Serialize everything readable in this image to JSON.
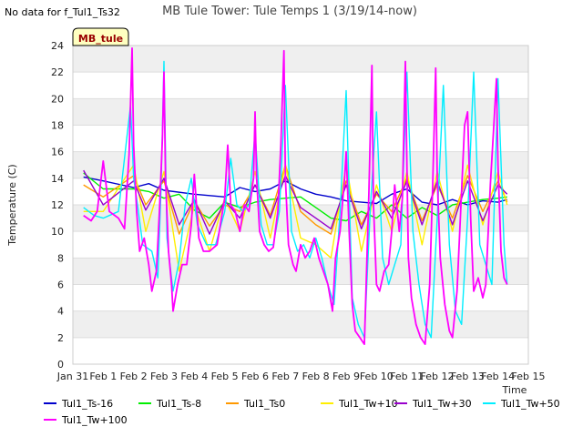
{
  "note": "No data for f_Tul1_Ts32",
  "badge": "MB_tule",
  "chart_data": {
    "type": "line",
    "title": "MB Tule Tower: Tule Temps 1 (3/19/14-now)",
    "xlabel": "Time",
    "ylabel": "Temperature (C)",
    "ylim": [
      0,
      24
    ],
    "xlim": [
      0,
      15
    ],
    "x_tick_values": [
      0,
      1,
      2,
      3,
      4,
      5,
      6,
      7,
      8,
      9,
      10,
      11,
      12,
      13,
      14,
      15
    ],
    "x_tick_labels": [
      "Jan 31",
      "Feb 1",
      "Feb 2",
      "Feb 3",
      "Feb 4",
      "Feb 5",
      "Feb 6",
      "Feb 7",
      "Feb 8",
      "Feb 9",
      "Feb 10",
      "Feb 11",
      "Feb 12",
      "Feb 13",
      "Feb 14",
      "Feb 15"
    ],
    "y_ticks": [
      0,
      2,
      4,
      6,
      8,
      10,
      12,
      14,
      16,
      18,
      20,
      22,
      24
    ],
    "grid": "alternating horizontal bands",
    "legend_position": "bottom",
    "series": [
      {
        "name": "Tul1_Ts-16",
        "color": "#0000cc",
        "x": [
          0.35,
          1,
          2,
          2.5,
          3,
          4,
          5,
          5.5,
          6,
          6.5,
          7,
          7.5,
          8,
          8.5,
          9,
          9.5,
          10,
          10.5,
          11,
          11.5,
          12,
          12.5,
          13,
          13.5,
          14,
          14.3
        ],
        "y": [
          14.1,
          13.8,
          13.3,
          13.6,
          13.1,
          12.8,
          12.6,
          13.3,
          13.0,
          13.2,
          13.8,
          13.2,
          12.8,
          12.6,
          12.3,
          12.2,
          12.1,
          12.8,
          13.2,
          12.2,
          12.0,
          12.4,
          12.0,
          12.3,
          12.2,
          12.4
        ]
      },
      {
        "name": "Tul1_Ts-8",
        "color": "#00ee00",
        "x": [
          0.35,
          1,
          2,
          2.5,
          3,
          3.5,
          4,
          4.5,
          5,
          5.5,
          6,
          6.5,
          7,
          7.5,
          8,
          8.5,
          9,
          9.5,
          10,
          10.5,
          11,
          11.5,
          12,
          12.5,
          13,
          13.5,
          14,
          14.3
        ],
        "y": [
          14.4,
          13.2,
          13.2,
          13.0,
          12.5,
          12.8,
          11.6,
          11.0,
          12.2,
          11.8,
          12.2,
          12.4,
          12.5,
          12.6,
          11.8,
          11.0,
          10.8,
          11.5,
          11.0,
          12.0,
          11.0,
          11.8,
          11.2,
          12.0,
          12.2,
          12.4,
          12.5,
          12.6
        ]
      },
      {
        "name": "Tul1_Ts0",
        "color": "#ff9900",
        "x": [
          0.35,
          1,
          2,
          2.4,
          3,
          3.5,
          4,
          4.5,
          5,
          5.5,
          6,
          6.5,
          7,
          7.5,
          8,
          8.5,
          9,
          9.5,
          10,
          10.5,
          11,
          11.5,
          12,
          12.5,
          13,
          13.5,
          14,
          14.3
        ],
        "y": [
          13.5,
          12.6,
          14.2,
          12.0,
          13.8,
          9.8,
          12.3,
          10.4,
          12.0,
          11.5,
          13.5,
          11.2,
          15.0,
          11.5,
          10.5,
          9.8,
          13.8,
          10.5,
          12.8,
          11.5,
          14.0,
          10.8,
          13.5,
          11.0,
          14.2,
          11.5,
          13.8,
          12.2
        ]
      },
      {
        "name": "Tul1_Tw+10",
        "color": "#ffee00",
        "x": [
          0.35,
          1,
          2,
          2.4,
          3,
          3.5,
          4,
          4.5,
          5,
          5.5,
          6,
          6.5,
          7,
          7.5,
          8,
          8.5,
          9,
          9.5,
          10,
          10.5,
          11,
          11.5,
          12,
          12.5,
          13,
          13.5,
          14,
          14.3
        ],
        "y": [
          11.5,
          11.5,
          15.0,
          10.0,
          14.5,
          7.0,
          12.0,
          8.5,
          12.5,
          10.0,
          14.5,
          9.5,
          15.0,
          9.5,
          9.0,
          8.0,
          15.0,
          8.5,
          13.5,
          10.0,
          14.5,
          9.0,
          14.5,
          10.0,
          15.0,
          10.5,
          14.5,
          12.0
        ]
      },
      {
        "name": "Tul1_Tw+30",
        "color": "#9900cc",
        "x": [
          0.35,
          1,
          2,
          2.4,
          3,
          3.5,
          4,
          4.5,
          5,
          5.5,
          6,
          6.5,
          7,
          7.5,
          8,
          8.5,
          9,
          9.5,
          10,
          10.5,
          11,
          11.5,
          12,
          12.5,
          13,
          13.5,
          14,
          14.3
        ],
        "y": [
          14.6,
          12.0,
          13.8,
          11.6,
          14.0,
          10.5,
          12.4,
          9.8,
          12.3,
          11.0,
          13.5,
          11.0,
          14.2,
          11.8,
          11.0,
          10.2,
          13.5,
          10.2,
          13.0,
          11.0,
          13.8,
          10.5,
          13.8,
          10.5,
          13.8,
          10.8,
          13.5,
          12.8
        ]
      },
      {
        "name": "Tul1_Tw+50",
        "color": "#00eeff",
        "x": [
          0.35,
          0.7,
          1,
          1.5,
          1.9,
          2.0,
          2.1,
          2.3,
          2.6,
          2.8,
          2.9,
          3.0,
          3.1,
          3.3,
          3.5,
          3.7,
          3.9,
          4.1,
          4.4,
          4.7,
          5.0,
          5.2,
          5.4,
          5.6,
          5.8,
          6.0,
          6.2,
          6.4,
          6.6,
          6.8,
          7.0,
          7.2,
          7.4,
          7.6,
          7.8,
          8.0,
          8.2,
          8.4,
          8.6,
          8.8,
          9.0,
          9.2,
          9.4,
          9.6,
          9.8,
          10.0,
          10.2,
          10.4,
          10.6,
          10.8,
          11.0,
          11.2,
          11.4,
          11.6,
          11.8,
          12.0,
          12.2,
          12.4,
          12.6,
          12.8,
          13.0,
          13.2,
          13.4,
          13.6,
          13.8,
          14.0,
          14.2,
          14.3
        ],
        "y": [
          11.8,
          11.2,
          11.0,
          11.5,
          19.5,
          14.0,
          12.5,
          9.0,
          8.5,
          6.5,
          13.0,
          22.8,
          9.5,
          5.5,
          7.8,
          12.0,
          14.0,
          10.5,
          9.0,
          9.0,
          11.5,
          15.5,
          12.0,
          11.5,
          12.0,
          17.5,
          10.5,
          9.0,
          9.0,
          11.5,
          21.0,
          10.0,
          8.5,
          9.0,
          8.0,
          9.5,
          8.0,
          6.0,
          4.5,
          11.5,
          20.6,
          5.0,
          3.0,
          2.0,
          12.0,
          19.0,
          8.0,
          6.0,
          7.5,
          9.0,
          22.0,
          10.0,
          6.0,
          3.0,
          2.0,
          11.0,
          21.0,
          9.0,
          4.0,
          3.0,
          11.0,
          22.0,
          9.0,
          7.5,
          6.0,
          21.5,
          9.0,
          6.0
        ]
      },
      {
        "name": "Tul1_Tw+100",
        "color": "#ff00ff",
        "x": [
          0.35,
          0.6,
          0.8,
          1.0,
          1.2,
          1.5,
          1.7,
          1.85,
          1.95,
          2.0,
          2.1,
          2.2,
          2.35,
          2.5,
          2.6,
          2.75,
          2.85,
          2.95,
          3.0,
          3.05,
          3.15,
          3.25,
          3.3,
          3.45,
          3.6,
          3.75,
          3.9,
          4.0,
          4.15,
          4.3,
          4.5,
          4.75,
          5.0,
          5.1,
          5.2,
          5.35,
          5.5,
          5.65,
          5.8,
          5.95,
          6.0,
          6.05,
          6.15,
          6.3,
          6.45,
          6.6,
          6.75,
          6.85,
          6.95,
          7.0,
          7.1,
          7.25,
          7.35,
          7.5,
          7.65,
          7.8,
          7.95,
          8.1,
          8.25,
          8.4,
          8.55,
          8.65,
          8.8,
          8.95,
          9.0,
          9.1,
          9.2,
          9.3,
          9.45,
          9.6,
          9.75,
          9.85,
          9.9,
          10.0,
          10.1,
          10.25,
          10.4,
          10.5,
          10.6,
          10.75,
          10.85,
          10.95,
          11.0,
          11.05,
          11.15,
          11.3,
          11.45,
          11.6,
          11.75,
          11.85,
          11.95,
          12.0,
          12.1,
          12.25,
          12.4,
          12.5,
          12.65,
          12.8,
          12.9,
          13.0,
          13.1,
          13.2,
          13.35,
          13.5,
          13.6,
          13.75,
          13.85,
          13.95,
          14.0,
          14.1,
          14.2,
          14.3
        ],
        "y": [
          11.2,
          10.8,
          11.5,
          15.3,
          11.5,
          11.0,
          10.2,
          15.8,
          23.8,
          16.5,
          11.5,
          8.5,
          9.5,
          7.5,
          5.5,
          7.0,
          11.5,
          17.0,
          22.0,
          14.0,
          8.5,
          6.0,
          4.0,
          6.0,
          7.5,
          7.5,
          10.5,
          14.3,
          9.5,
          8.5,
          8.5,
          9.0,
          12.5,
          16.5,
          12.0,
          11.5,
          10.0,
          12.0,
          11.5,
          14.0,
          19.0,
          14.0,
          10.0,
          9.0,
          8.5,
          8.8,
          11.5,
          16.5,
          23.6,
          14.0,
          9.0,
          7.5,
          7.0,
          9.0,
          8.0,
          8.5,
          9.5,
          8.0,
          7.0,
          6.0,
          4.0,
          8.0,
          10.0,
          14.0,
          16.0,
          10.0,
          4.5,
          2.5,
          2.0,
          1.5,
          13.0,
          22.5,
          12.0,
          6.0,
          5.5,
          7.0,
          7.5,
          10.0,
          13.5,
          10.0,
          12.5,
          22.8,
          15.0,
          8.0,
          5.0,
          3.0,
          2.0,
          1.5,
          6.0,
          13.5,
          22.3,
          14.0,
          8.0,
          4.5,
          2.5,
          2.0,
          5.5,
          13.0,
          18.0,
          19.0,
          11.0,
          5.5,
          6.5,
          5.0,
          6.0,
          13.5,
          17.5,
          21.5,
          15.0,
          8.5,
          6.5,
          6.0
        ]
      }
    ]
  }
}
